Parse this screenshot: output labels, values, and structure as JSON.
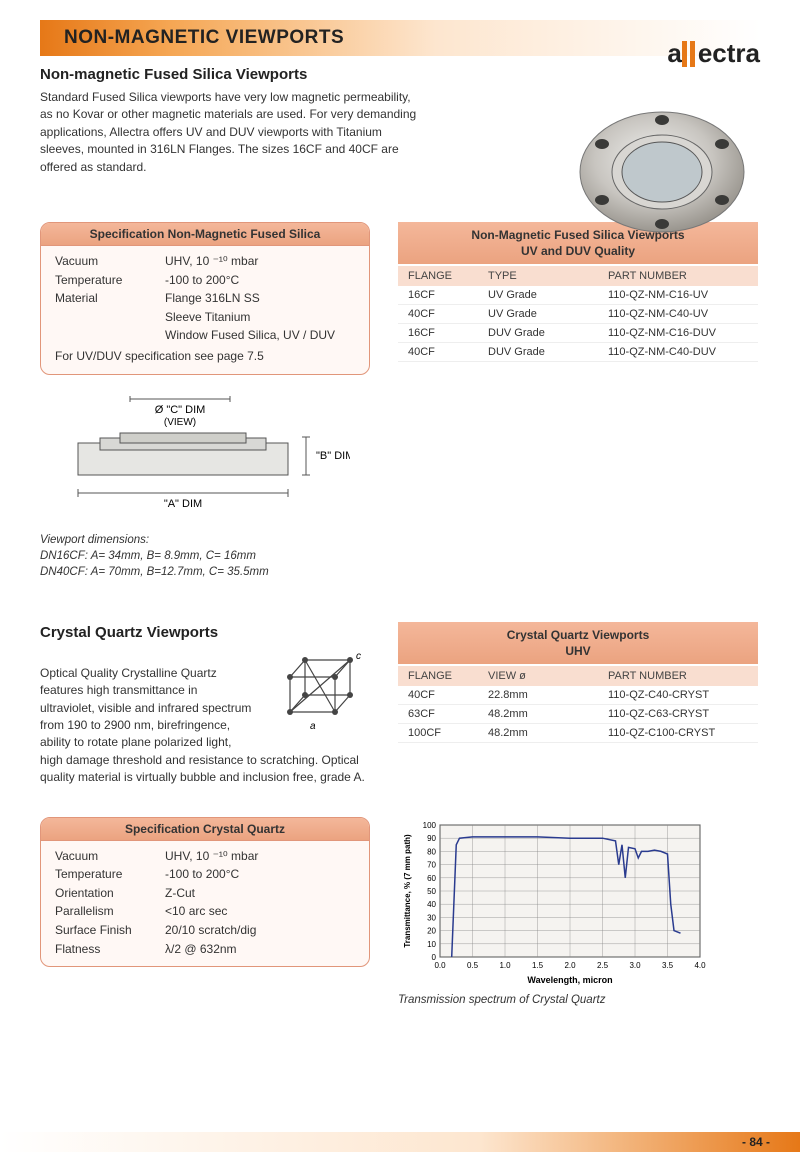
{
  "brand": "allectra",
  "header_title": "NON-MAGNETIC VIEWPORTS",
  "section1": {
    "title": "Non-magnetic Fused Silica Viewports",
    "intro": "Standard Fused Silica viewports have very low magnetic permeability, as no Kovar or other magnetic materials are used. For very demanding applications, Allectra offers UV and DUV viewports with Titanium sleeves, mounted in 316LN Flanges. The sizes 16CF and 40CF are offered as standard.",
    "spec": {
      "title": "Specification Non-Magnetic Fused Silica",
      "rows": [
        {
          "k": "Vacuum",
          "v": "UHV,  10 ⁻¹⁰ mbar"
        },
        {
          "k": "Temperature",
          "v": "-100 to 200°C"
        },
        {
          "k": "Material",
          "v": "Flange 316LN SS"
        },
        {
          "k": "",
          "v": "Sleeve Titanium"
        },
        {
          "k": "",
          "v": "Window Fused Silica, UV / DUV"
        }
      ],
      "note": "For UV/DUV specification see page 7.5"
    },
    "table": {
      "title": "Non-Magnetic Fused Silica Viewports\nUV and DUV Quality",
      "cols": [
        "FLANGE",
        "TYPE",
        "PART NUMBER"
      ],
      "rows": [
        [
          "16CF",
          "UV Grade",
          "110-QZ-NM-C16-UV"
        ],
        [
          "40CF",
          "UV Grade",
          "110-QZ-NM-C40-UV"
        ],
        [
          "16CF",
          "DUV Grade",
          "110-QZ-NM-C16-DUV"
        ],
        [
          "40CF",
          "DUV Grade",
          "110-QZ-NM-C40-DUV"
        ]
      ]
    },
    "diagram": {
      "labels": {
        "top": "Ø \"C\" DIM",
        "top2": "(VIEW)",
        "right": "\"B\" DIM",
        "bottom": "\"A\" DIM"
      },
      "caption_title": "Viewport dimensions:",
      "caption_l1": "DN16CF: A= 34mm, B= 8.9mm, C= 16mm",
      "caption_l2": "DN40CF: A= 70mm, B=12.7mm, C= 35.5mm"
    }
  },
  "section2": {
    "title": "Crystal Quartz Viewports",
    "intro": "Optical Quality Crystalline Quartz features high transmittance in ultraviolet, visible and infrared spectrum from 190 to 2900 nm, birefringence, ability to rotate plane polarized light, high damage threshold and resistance to scratching. Optical quality material is virtually bubble and inclusion free, grade A.",
    "table": {
      "title": "Crystal Quartz Viewports\nUHV",
      "cols": [
        "FLANGE",
        "VIEW ø",
        "PART NUMBER"
      ],
      "rows": [
        [
          "40CF",
          "22.8mm",
          "110-QZ-C40-CRYST"
        ],
        [
          "63CF",
          "48.2mm",
          "110-QZ-C63-CRYST"
        ],
        [
          "100CF",
          "48.2mm",
          "110-QZ-C100-CRYST"
        ]
      ]
    },
    "spec": {
      "title": "Specification Crystal Quartz",
      "rows": [
        {
          "k": "Vacuum",
          "v": "UHV,  10 ⁻¹⁰ mbar"
        },
        {
          "k": "Temperature",
          "v": "-100 to 200°C"
        },
        {
          "k": "Orientation",
          "v": "Z-Cut"
        },
        {
          "k": "Parallelism",
          "v": "<10 arc sec"
        },
        {
          "k": "Surface Finish",
          "v": "20/10 scratch/dig"
        },
        {
          "k": "Flatness",
          "v": "λ/2 @ 632nm"
        }
      ]
    },
    "chart": {
      "caption": "Transmission spectrum of Crystal Quartz",
      "xlabel": "Wavelength, micron",
      "ylabel": "Transmittance, % (7 mm path)",
      "xlim": [
        0.0,
        4.0
      ],
      "xtick_step": 0.5,
      "ylim": [
        0,
        100
      ],
      "ytick_step": 10,
      "line_color": "#2a3b8f",
      "grid_color": "#888",
      "background": "#f5f3f0",
      "data_x": [
        0.18,
        0.25,
        0.3,
        0.5,
        1.0,
        1.5,
        2.0,
        2.5,
        2.7,
        2.75,
        2.8,
        2.85,
        2.9,
        3.0,
        3.05,
        3.1,
        3.2,
        3.3,
        3.4,
        3.5,
        3.55,
        3.6,
        3.7
      ],
      "data_y": [
        0,
        85,
        90,
        91,
        91,
        91,
        90,
        90,
        88,
        70,
        85,
        60,
        83,
        82,
        75,
        80,
        80,
        81,
        80,
        78,
        40,
        20,
        18
      ]
    }
  },
  "page_number": "- 84 -",
  "colors": {
    "orange": "#e67817",
    "peach": "#f4b79a",
    "peach_light": "#f9ded0",
    "box_border": "#e1967a"
  }
}
